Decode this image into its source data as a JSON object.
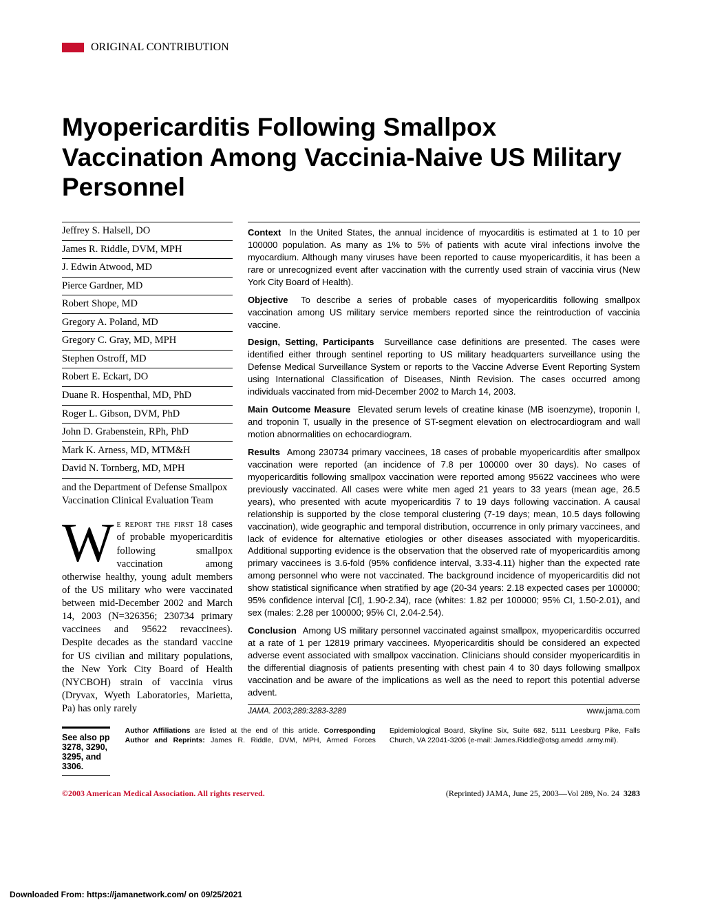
{
  "section_label": "ORIGINAL CONTRIBUTION",
  "title": "Myopericarditis Following Smallpox Vaccination Among Vaccinia-Naive US Military Personnel",
  "authors": [
    "Jeffrey S. Halsell, DO",
    "James R. Riddle, DVM, MPH",
    "J. Edwin Atwood, MD",
    "Pierce Gardner, MD",
    "Robert Shope, MD",
    "Gregory A. Poland, MD",
    "Gregory C. Gray, MD, MPH",
    "Stephen Ostroff, MD",
    "Robert E. Eckart, DO",
    "Duane R. Hospenthal, MD, PhD",
    "Roger L. Gibson, DVM, PhD",
    "John D. Grabenstein, RPh, PhD",
    "Mark K. Arness, MD, MTM&H",
    "David N. Tornberg, MD, MPH"
  ],
  "team_note": "and the Department of Defense Smallpox Vaccination Clinical Evaluation Team",
  "intro_smallcaps": "e report the first 18",
  "intro_body": "cases of probable myopericarditis following smallpox vaccination among otherwise healthy, young adult members of the US military who were vaccinated between mid-December 2002 and March 14, 2003 (N=326356; 230734 primary vaccinees and 95622 revaccinees). Despite decades as the standard vaccine for US civilian and military populations, the New York City Board of Health (NYCBOH) strain of vaccinia virus (Dryvax, Wyeth Laboratories, Marietta, Pa) has only rarely",
  "abstract": {
    "context": "In the United States, the annual incidence of myocarditis is estimated at 1 to 10 per 100000 population. As many as 1% to 5% of patients with acute viral infections involve the myocardium. Although many viruses have been reported to cause myopericarditis, it has been a rare or unrecognized event after vaccination with the currently used strain of vaccinia virus (New York City Board of Health).",
    "objective": "To describe a series of probable cases of myopericarditis following smallpox vaccination among US military service members reported since the reintroduction of vaccinia vaccine.",
    "design": "Surveillance case definitions are presented. The cases were identified either through sentinel reporting to US military headquarters surveillance using the Defense Medical Surveillance System or reports to the Vaccine Adverse Event Reporting System using International Classification of Diseases, Ninth Revision. The cases occurred among individuals vaccinated from mid-December 2002 to March 14, 2003.",
    "outcome": "Elevated serum levels of creatine kinase (MB isoenzyme), troponin I, and troponin T, usually in the presence of ST-segment elevation on electrocardiogram and wall motion abnormalities on echocardiogram.",
    "results": "Among 230734 primary vaccinees, 18 cases of probable myopericarditis after smallpox vaccination were reported (an incidence of 7.8 per 100000 over 30 days). No cases of myopericarditis following smallpox vaccination were reported among 95622 vaccinees who were previously vaccinated. All cases were white men aged 21 years to 33 years (mean age, 26.5 years), who presented with acute myopericarditis 7 to 19 days following vaccination. A causal relationship is supported by the close temporal clustering (7-19 days; mean, 10.5 days following vaccination), wide geographic and temporal distribution, occurrence in only primary vaccinees, and lack of evidence for alternative etiologies or other diseases associated with myopericarditis. Additional supporting evidence is the observation that the observed rate of myopericarditis among primary vaccinees is 3.6-fold (95% confidence interval, 3.33-4.11) higher than the expected rate among personnel who were not vaccinated. The background incidence of myopericarditis did not show statistical significance when stratified by age (20-34 years: 2.18 expected cases per 100000; 95% confidence interval [CI], 1.90-2.34), race (whites: 1.82 per 100000; 95% CI, 1.50-2.01), and sex (males: 2.28 per 100000; 95% CI, 2.04-2.54).",
    "conclusion": "Among US military personnel vaccinated against smallpox, myopericarditis occurred at a rate of 1 per 12819 primary vaccinees. Myopericarditis should be considered an expected adverse event associated with smallpox vaccination. Clinicians should consider myopericarditis in the differential diagnosis of patients presenting with chest pain 4 to 30 days following smallpox vaccination and be aware of the implications as well as the need to report this potential adverse advent."
  },
  "citation": "JAMA. 2003;289:3283-3289",
  "site": "www.jama.com",
  "see_also": "See also pp 3278, 3290, 3295, and 3306.",
  "affiliations": "Author Affiliations are listed at the end of this article. Corresponding Author and Reprints: James R. Riddle, DVM, MPH, Armed Forces Epidemiological Board, Skyline Six, Suite 682, 5111 Leesburg Pike, Falls Church, VA 22041-3206 (e-mail: James.Riddle@otsg.amedd .army.mil).",
  "copyright": "©2003 American Medical Association. All rights reserved.",
  "reprint_left": "(Reprinted) JAMA, June 25, 2003—Vol 289, No. 24",
  "reprint_page": "3283",
  "download_note": "Downloaded From: https://jamanetwork.com/ on 09/25/2021",
  "colors": {
    "accent_red": "#c8102e",
    "text": "#000000",
    "bg": "#ffffff"
  }
}
